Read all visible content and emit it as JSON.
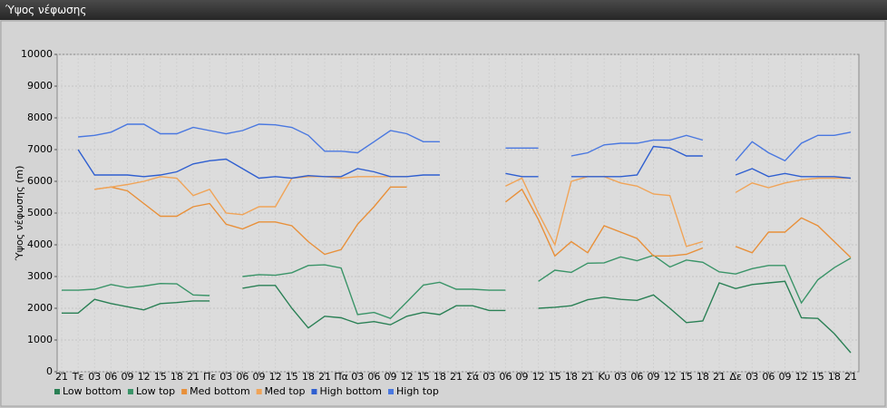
{
  "chart_data": {
    "type": "line",
    "title": "Ύψος νέφωσης",
    "y_label": "Ύψος νέφωσης (m)",
    "categories": [
      "21",
      "Τε",
      "03",
      "06",
      "09",
      "12",
      "15",
      "18",
      "21",
      "Πε",
      "03",
      "06",
      "09",
      "12",
      "15",
      "18",
      "21",
      "Πα",
      "03",
      "06",
      "09",
      "12",
      "15",
      "18",
      "21",
      "Σά",
      "03",
      "06",
      "09",
      "12",
      "15",
      "18",
      "21",
      "Κυ",
      "03",
      "06",
      "09",
      "12",
      "15",
      "18",
      "21",
      "Δε",
      "03",
      "06",
      "09",
      "12",
      "15",
      "18",
      "21"
    ],
    "ylim": [
      0,
      10000
    ],
    "yticks": [
      0,
      1000,
      2000,
      3000,
      4000,
      5000,
      6000,
      7000,
      8000,
      9000,
      10000
    ],
    "grid": true,
    "series": [
      {
        "name": "Low bottom",
        "color": "#2a8055",
        "values": [
          1850,
          1850,
          2280,
          2150,
          2050,
          1950,
          2150,
          2180,
          2230,
          2230,
          null,
          2630,
          2720,
          2720,
          2000,
          1380,
          1750,
          1700,
          1520,
          1580,
          1480,
          1750,
          1870,
          1800,
          2080,
          2080,
          1930,
          1930,
          null,
          2000,
          2030,
          2080,
          2270,
          2350,
          2280,
          2250,
          2420,
          2000,
          1550,
          1600,
          2800,
          2620,
          2750,
          2800,
          2850,
          1700,
          1680,
          1200,
          600
        ]
      },
      {
        "name": "Low top",
        "color": "#3a9468",
        "values": [
          2570,
          2570,
          2600,
          2750,
          2650,
          2700,
          2780,
          2770,
          2420,
          2400,
          null,
          3000,
          3060,
          3040,
          3120,
          3350,
          3370,
          3270,
          1800,
          1870,
          1680,
          2200,
          2730,
          2820,
          2600,
          2600,
          2570,
          2570,
          null,
          2850,
          3200,
          3130,
          3420,
          3430,
          3620,
          3500,
          3670,
          3300,
          3520,
          3450,
          3150,
          3080,
          3250,
          3350,
          3350,
          2170,
          2900,
          3280,
          3580
        ]
      },
      {
        "name": "Med bottom",
        "color": "#e8903a",
        "values": [
          null,
          null,
          5750,
          5820,
          5700,
          5300,
          4900,
          4900,
          5200,
          5300,
          4650,
          4500,
          4720,
          4720,
          4600,
          4100,
          3700,
          3850,
          4650,
          5200,
          5820,
          5820,
          null,
          null,
          null,
          null,
          null,
          5350,
          5750,
          4800,
          3650,
          4100,
          3750,
          4600,
          4400,
          4200,
          3650,
          3650,
          3700,
          3900,
          null,
          3950,
          3750,
          4400,
          4400,
          4850,
          4600,
          4100,
          3600
        ]
      },
      {
        "name": "Med top",
        "color": "#f0a458",
        "values": [
          null,
          null,
          5750,
          5820,
          5900,
          6000,
          6150,
          6100,
          5550,
          5750,
          5000,
          4950,
          5200,
          5200,
          6100,
          6150,
          6150,
          6100,
          6150,
          6150,
          6150,
          6150,
          null,
          null,
          null,
          null,
          null,
          5850,
          6100,
          5000,
          4000,
          6000,
          6150,
          6150,
          5950,
          5850,
          5600,
          5550,
          3950,
          4100,
          null,
          5650,
          5950,
          5800,
          5950,
          6050,
          6100,
          6100,
          6100
        ]
      },
      {
        "name": "High bottom",
        "color": "#2f5fd0",
        "values": [
          null,
          7000,
          6200,
          6200,
          6200,
          6150,
          6200,
          6300,
          6550,
          6650,
          6700,
          6400,
          6100,
          6150,
          6100,
          6180,
          6150,
          6150,
          6400,
          6300,
          6150,
          6150,
          6200,
          6200,
          null,
          null,
          null,
          6250,
          6150,
          6150,
          null,
          6150,
          6150,
          6150,
          6150,
          6200,
          7100,
          7050,
          6800,
          6800,
          null,
          6200,
          6400,
          6150,
          6250,
          6150,
          6150,
          6150,
          6100
        ]
      },
      {
        "name": "High top",
        "color": "#4a78e0",
        "values": [
          null,
          7400,
          7450,
          7550,
          7800,
          7800,
          7500,
          7500,
          7700,
          7600,
          7500,
          7600,
          7800,
          7780,
          7700,
          7450,
          6950,
          6950,
          6900,
          7250,
          7600,
          7500,
          7250,
          7250,
          null,
          null,
          null,
          7050,
          7050,
          7050,
          null,
          6800,
          6900,
          7150,
          7200,
          7200,
          7300,
          7300,
          7450,
          7300,
          null,
          6650,
          7250,
          6900,
          6650,
          7200,
          7450,
          7450,
          7550
        ]
      }
    ]
  }
}
